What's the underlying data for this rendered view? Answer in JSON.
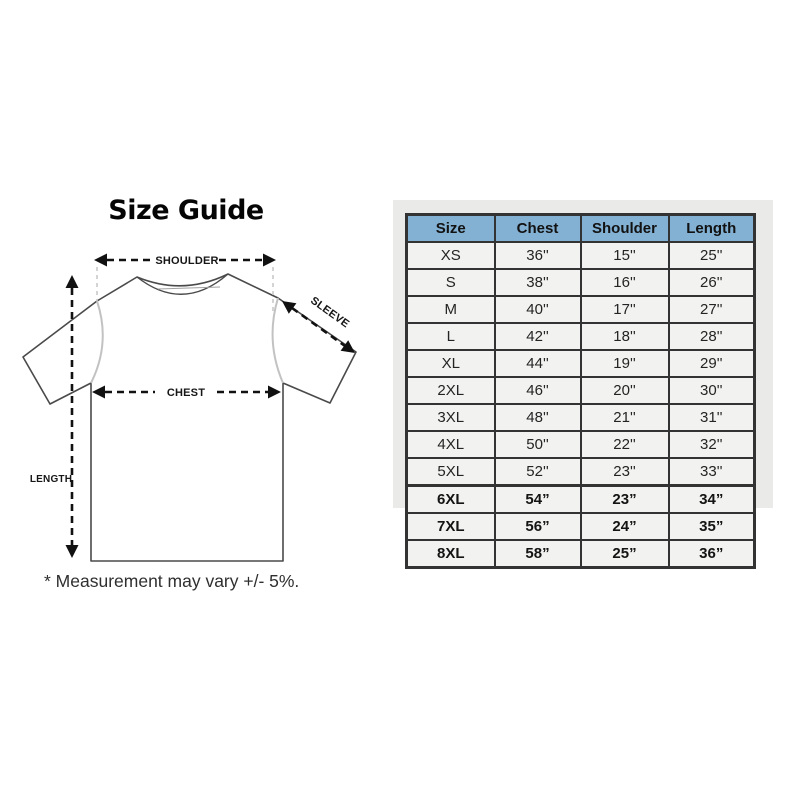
{
  "left_panel": {
    "title": "Size Guide",
    "note": "* Measurement may vary +/- 5%.",
    "labels": {
      "shoulder": "SHOULDER",
      "sleeve": "SLEEVE",
      "chest": "CHEST",
      "length": "LENGTH"
    }
  },
  "size_table": {
    "columns": [
      "Size",
      "Chest",
      "Shoulder",
      "Length"
    ],
    "rows": [
      {
        "size": "XS",
        "chest": "36''",
        "shoulder": "15''",
        "length": "25''",
        "bold": false
      },
      {
        "size": "S",
        "chest": "38''",
        "shoulder": "16''",
        "length": "26''",
        "bold": false
      },
      {
        "size": "M",
        "chest": "40''",
        "shoulder": "17''",
        "length": "27''",
        "bold": false
      },
      {
        "size": "L",
        "chest": "42''",
        "shoulder": "18''",
        "length": "28''",
        "bold": false
      },
      {
        "size": "XL",
        "chest": "44''",
        "shoulder": "19''",
        "length": "29''",
        "bold": false
      },
      {
        "size": "2XL",
        "chest": "46''",
        "shoulder": "20''",
        "length": "30''",
        "bold": false
      },
      {
        "size": "3XL",
        "chest": "48''",
        "shoulder": "21''",
        "length": "31''",
        "bold": false
      },
      {
        "size": "4XL",
        "chest": "50''",
        "shoulder": "22''",
        "length": "32''",
        "bold": false
      },
      {
        "size": "5XL",
        "chest": "52''",
        "shoulder": "23''",
        "length": "33''",
        "bold": false
      },
      {
        "size": "6XL",
        "chest": "54”",
        "shoulder": "23”",
        "length": "34”",
        "bold": true
      },
      {
        "size": "7XL",
        "chest": "56”",
        "shoulder": "24”",
        "length": "35”",
        "bold": true
      },
      {
        "size": "8XL",
        "chest": "58”",
        "shoulder": "25”",
        "length": "36”",
        "bold": true
      }
    ]
  },
  "colors": {
    "header_bg": "#83b1d4",
    "border_color": "#333333",
    "cell_bg": "#f2f2f0",
    "panel": "#eaeae8",
    "outline": "#4a4a4a",
    "arrow": "#111111",
    "guide": "#c6c6c6",
    "armhole": "#c2c2c2"
  }
}
